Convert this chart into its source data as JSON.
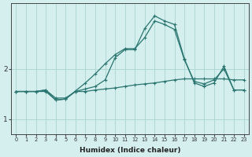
{
  "xlabel": "Humidex (Indice chaleur)",
  "background_color": "#d4efee",
  "grid_color": "#aed8d6",
  "line_color": "#2a7570",
  "xlim": [
    -0.5,
    23.5
  ],
  "ylim": [
    0.7,
    3.3
  ],
  "yticks": [
    1,
    2
  ],
  "xticks": [
    0,
    1,
    2,
    3,
    4,
    5,
    6,
    7,
    8,
    9,
    10,
    11,
    12,
    13,
    14,
    15,
    16,
    17,
    18,
    19,
    20,
    21,
    22,
    23
  ],
  "line1_x": [
    0,
    1,
    2,
    3,
    4,
    5,
    6,
    7,
    8,
    9,
    10,
    11,
    12,
    13,
    14,
    15,
    16,
    17,
    18,
    19,
    20,
    21,
    22,
    23
  ],
  "line1_y": [
    1.55,
    1.55,
    1.55,
    1.58,
    1.42,
    1.42,
    1.55,
    1.55,
    1.58,
    1.6,
    1.62,
    1.65,
    1.68,
    1.7,
    1.72,
    1.75,
    1.78,
    1.8,
    1.8,
    1.8,
    1.8,
    1.8,
    1.78,
    1.78
  ],
  "line2_x": [
    0,
    1,
    2,
    3,
    4,
    5,
    6,
    7,
    8,
    9,
    10,
    11,
    12,
    13,
    14,
    15,
    16,
    17,
    18,
    19,
    20,
    21,
    22,
    23
  ],
  "line2_y": [
    1.55,
    1.55,
    1.55,
    1.58,
    1.38,
    1.4,
    1.56,
    1.72,
    1.9,
    2.1,
    2.28,
    2.4,
    2.4,
    2.62,
    2.95,
    2.88,
    2.78,
    2.18,
    1.75,
    1.7,
    1.78,
    2.0,
    1.58,
    1.58
  ],
  "line3_x": [
    0,
    1,
    2,
    3,
    4,
    5,
    6,
    7,
    8,
    9,
    10,
    11,
    12,
    13,
    14,
    15,
    16,
    17,
    18,
    19,
    20,
    21,
    22,
    23
  ],
  "line3_y": [
    1.55,
    1.55,
    1.55,
    1.55,
    1.38,
    1.4,
    1.55,
    1.6,
    1.65,
    1.78,
    2.22,
    2.38,
    2.38,
    2.8,
    3.05,
    2.95,
    2.88,
    2.2,
    1.72,
    1.65,
    1.72,
    2.05,
    1.58,
    1.58
  ]
}
